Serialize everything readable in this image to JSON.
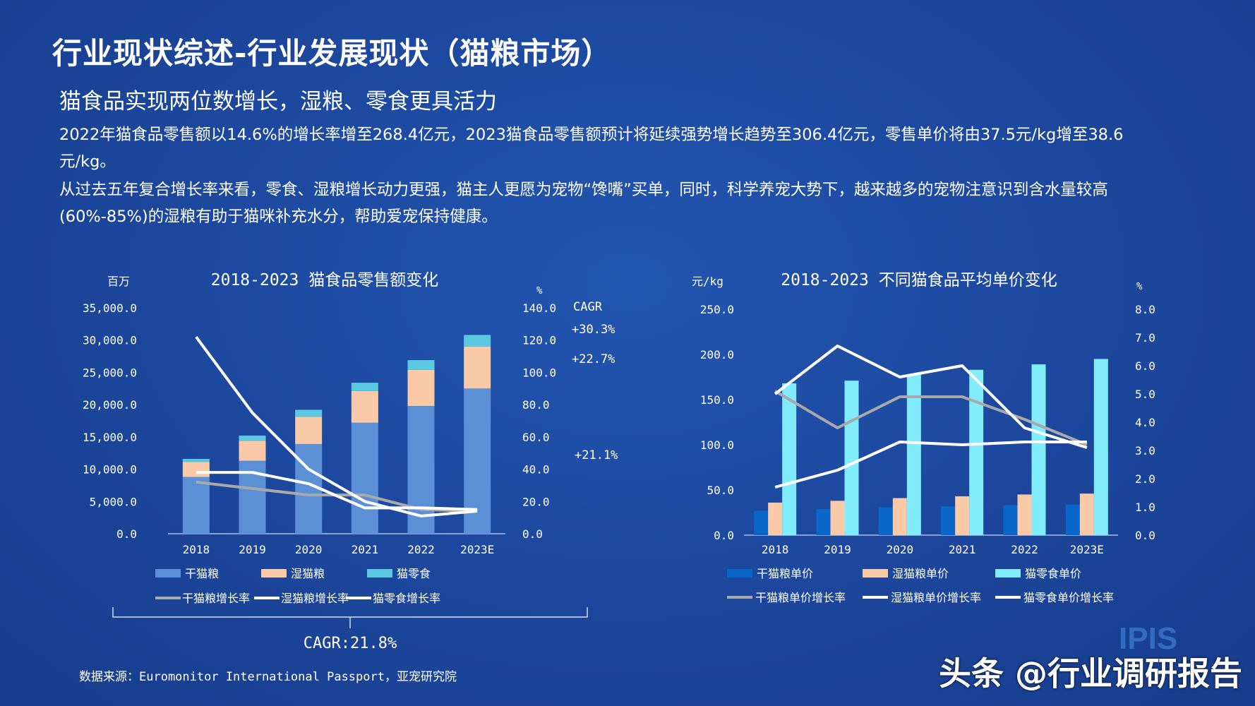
{
  "header": {
    "title": "行业现状综述-行业发展现状（猫粮市场）",
    "subtitle": "猫食品实现两位数增长，湿粮、零食更具活力",
    "para1": "2022年猫食品零售额以14.6%的增长率增至268.4亿元，2023猫食品零售额预计将延续强势增长趋势至306.4亿元，零售单价将由37.5元/kg增至38.6元/kg。",
    "para2": "从过去五年复合增长率来看，零食、湿粮增长动力更强，猫主人更愿为宠物“馋嘴”买单，同时，科学养宠大势下，越来越多的宠物注意识到含水量较高(60%-85%)的湿粮有助于猫咪补充水分，帮助爱宠保持健康。"
  },
  "footer": {
    "source": "数据来源：Euromonitor International Passport，亚宠研究院",
    "watermark": "头条 @行业调研报告",
    "logo_text": "IPIS"
  },
  "colors": {
    "dry": "#5b8fd6",
    "wet": "#f9c9a8",
    "snack": "#5ac8e0",
    "dry_price": "#0a66c8",
    "wet_price": "#f9c9a8",
    "snack_price": "#80ecfc",
    "dry_growth": "#a9a9a9",
    "wet_growth": "#ffffff",
    "snack_growth": "#ffffff"
  },
  "chart_data": [
    {
      "type": "bar",
      "stacked": true,
      "title": "2018-2023 猫食品零售额变化",
      "ylabel": "百万",
      "y2label": "%",
      "categories": [
        "2018",
        "2019",
        "2020",
        "2021",
        "2022",
        "2023E"
      ],
      "ylim": [
        0,
        35000
      ],
      "y2lim": [
        0,
        140
      ],
      "yticks": [
        "0.0",
        "5,000.0",
        "10,000.0",
        "15,000.0",
        "20,000.0",
        "25,000.0",
        "30,000.0",
        "35,000.0"
      ],
      "y2ticks": [
        "0.0",
        "20.0",
        "40.0",
        "60.0",
        "80.0",
        "100.0",
        "120.0",
        "140.0"
      ],
      "series": [
        {
          "name": "干猫粮",
          "values": [
            8800,
            11300,
            13900,
            17200,
            19800,
            22500
          ]
        },
        {
          "name": "湿猫粮",
          "values": [
            2300,
            3100,
            4200,
            4900,
            5600,
            6500
          ]
        },
        {
          "name": "猫零食",
          "values": [
            500,
            800,
            1100,
            1300,
            1500,
            1800
          ]
        }
      ],
      "line_series": [
        {
          "name": "干猫粮增长率",
          "values": [
            32,
            28,
            24,
            24,
            15,
            14
          ]
        },
        {
          "name": "湿猫粮增长率",
          "values": [
            38,
            38,
            31,
            16,
            16,
            15
          ]
        },
        {
          "name": "猫零食增长率",
          "values": [
            122,
            75,
            40,
            20,
            11,
            14
          ]
        }
      ],
      "cagr_header": "CAGR",
      "cagr_labels": [
        "+30.3%",
        "+22.7%",
        "+21.1%"
      ],
      "total_cagr": "CAGR:21.8%"
    },
    {
      "type": "bar",
      "title": "2018-2023 不同猫食品平均单价变化",
      "ylabel": "元/kg",
      "y2label": "%",
      "categories": [
        "2018",
        "2019",
        "2020",
        "2021",
        "2022",
        "2023E"
      ],
      "ylim": [
        0,
        250
      ],
      "y2lim": [
        0,
        8
      ],
      "yticks": [
        "0.0",
        "50.0",
        "100.0",
        "150.0",
        "200.0",
        "250.0"
      ],
      "y2ticks": [
        "0.0",
        "1.0",
        "2.0",
        "3.0",
        "4.0",
        "5.0",
        "6.0",
        "7.0",
        "8.0"
      ],
      "series": [
        {
          "name": "干猫粮单价",
          "values": [
            27,
            29,
            31,
            32,
            33,
            34
          ]
        },
        {
          "name": "湿猫粮单价",
          "values": [
            36,
            38,
            41,
            43,
            45,
            46
          ]
        },
        {
          "name": "猫零食单价",
          "values": [
            168,
            171,
            178,
            183,
            189,
            195
          ]
        }
      ],
      "line_series": [
        {
          "name": "干猫粮单价增长率",
          "values": [
            5.1,
            3.8,
            4.9,
            4.9,
            4.1,
            3.2
          ]
        },
        {
          "name": "湿猫粮单价增长率",
          "values": [
            1.7,
            2.3,
            3.3,
            3.2,
            3.3,
            3.3
          ]
        },
        {
          "name": "猫零食单价增长率",
          "values": [
            5.0,
            6.7,
            5.6,
            6.0,
            3.8,
            3.1
          ]
        }
      ]
    }
  ]
}
